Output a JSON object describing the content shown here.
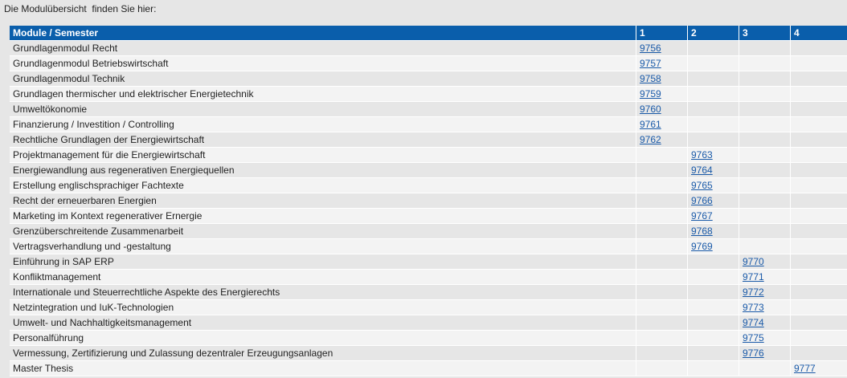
{
  "intro": "Die Modulübersicht  finden Sie hier:",
  "table": {
    "headers": [
      "Module / Semester",
      "1",
      "2",
      "3",
      "4"
    ],
    "rows": [
      {
        "name": "Grundlagenmodul Recht",
        "s1": "9756",
        "s2": "",
        "s3": "",
        "s4": ""
      },
      {
        "name": "Grundlagenmodul Betriebswirtschaft",
        "s1": "9757",
        "s2": "",
        "s3": "",
        "s4": ""
      },
      {
        "name": "Grundlagenmodul Technik",
        "s1": "9758",
        "s2": "",
        "s3": "",
        "s4": ""
      },
      {
        "name": "Grundlagen thermischer und elektrischer Energietechnik",
        "s1": "9759",
        "s2": "",
        "s3": "",
        "s4": ""
      },
      {
        "name": "Umweltökonomie",
        "s1": "9760",
        "s2": "",
        "s3": "",
        "s4": ""
      },
      {
        "name": "Finanzierung / Investition / Controlling",
        "s1": "9761",
        "s2": "",
        "s3": "",
        "s4": ""
      },
      {
        "name": "Rechtliche Grundlagen der Energiewirtschaft",
        "s1": "9762",
        "s2": "",
        "s3": "",
        "s4": ""
      },
      {
        "name": "Projektmanagement für die Energiewirtschaft",
        "s1": "",
        "s2": "9763",
        "s3": "",
        "s4": ""
      },
      {
        "name": "Energiewandlung aus regenerativen Energiequellen",
        "s1": "",
        "s2": "9764",
        "s3": "",
        "s4": ""
      },
      {
        "name": "Erstellung englischsprachiger Fachtexte",
        "s1": "",
        "s2": "9765",
        "s3": "",
        "s4": ""
      },
      {
        "name": "Recht der erneuerbaren Energien",
        "s1": "",
        "s2": "9766",
        "s3": "",
        "s4": ""
      },
      {
        "name": "Marketing im Kontext regenerativer Ernergie",
        "s1": "",
        "s2": "9767",
        "s3": "",
        "s4": ""
      },
      {
        "name": "Grenzüberschreitende Zusammenarbeit",
        "s1": "",
        "s2": "9768",
        "s3": "",
        "s4": ""
      },
      {
        "name": "Vertragsverhandlung und -gestaltung",
        "s1": "",
        "s2": "9769",
        "s3": "",
        "s4": ""
      },
      {
        "name": "Einführung in SAP ERP",
        "s1": "",
        "s2": "",
        "s3": "9770",
        "s4": ""
      },
      {
        "name": "Konfliktmanagement",
        "s1": "",
        "s2": "",
        "s3": "9771",
        "s4": ""
      },
      {
        "name": "Internationale und Steuerrechtliche Aspekte des Energierechts",
        "s1": "",
        "s2": "",
        "s3": "9772",
        "s4": ""
      },
      {
        "name": "Netzintegration und IuK-Technologien",
        "s1": "",
        "s2": "",
        "s3": "9773",
        "s4": ""
      },
      {
        "name": "Umwelt- und Nachhaltigkeitsmanagement",
        "s1": "",
        "s2": "",
        "s3": "9774",
        "s4": ""
      },
      {
        "name": "Personalführung",
        "s1": "",
        "s2": "",
        "s3": "9775",
        "s4": ""
      },
      {
        "name": "Vermessung, Zertifizierung und Zulassung dezentraler Erzeugungsanlagen",
        "s1": "",
        "s2": "",
        "s3": "9776",
        "s4": ""
      },
      {
        "name": "Master Thesis",
        "s1": "",
        "s2": "",
        "s3": "",
        "s4": "9777"
      }
    ]
  },
  "colors": {
    "header_bg": "#0a5eab",
    "link": "#1a5aa8",
    "row_odd": "#e6e6e6",
    "row_even": "#f3f3f3"
  }
}
